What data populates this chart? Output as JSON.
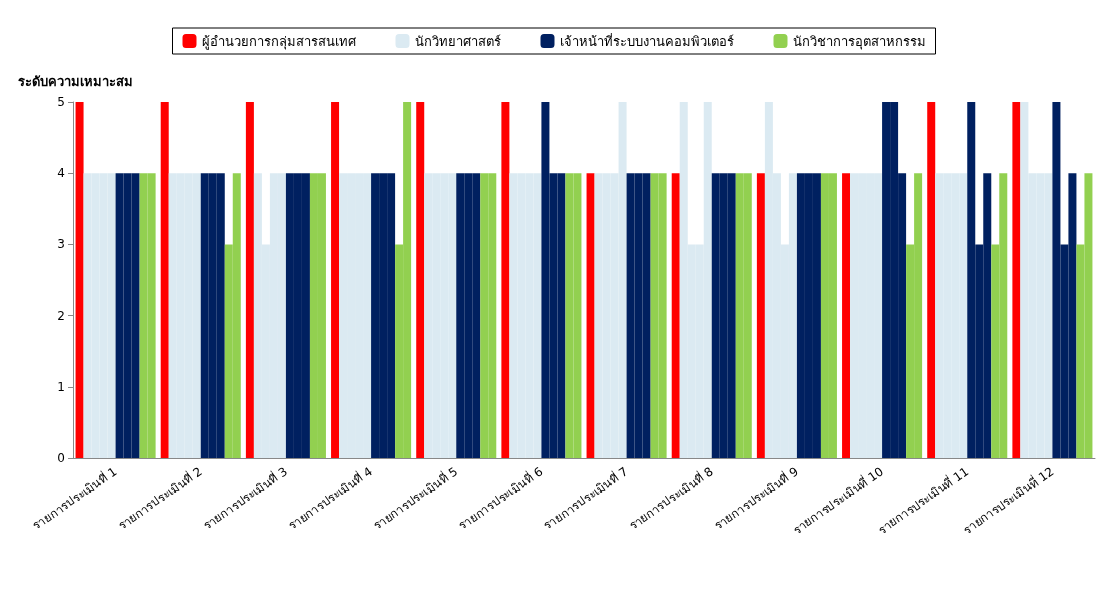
{
  "chart_data": {
    "type": "bar",
    "ylabel": "ระดับความเหมาะสม",
    "categories": [
      "รายการประเมินที่ 1",
      "รายการประเมินที่ 2",
      "รายการประเมินที่ 3",
      "รายการประเมินที่ 4",
      "รายการประเมินที่ 5",
      "รายการประเมินที่ 6",
      "รายการประเมินที่ 7",
      "รายการประเมินที่ 8",
      "รายการประเมินที่ 9",
      "รายการประเมินที่ 10",
      "รายการประเมินที่ 11",
      "รายการประเมินที่ 12"
    ],
    "series": [
      {
        "name": "ผู้อำนวยการกลุ่มสารสนเทศ",
        "color": "#ff0000",
        "values": [
          5,
          5,
          5,
          5,
          5,
          5,
          4,
          4,
          4,
          4,
          5,
          5
        ]
      },
      {
        "name": "นักวิทยาศาสตร์",
        "color": "#dbeaf2",
        "values": [
          4,
          4,
          4,
          4,
          4,
          4,
          4,
          5,
          5,
          4,
          4,
          5
        ]
      },
      {
        "color": "#dbeaf2",
        "values": [
          4,
          4,
          3,
          4,
          4,
          4,
          4,
          3,
          4,
          4,
          4,
          4
        ]
      },
      {
        "color": "#dbeaf2",
        "values": [
          4,
          4,
          4,
          4,
          4,
          4,
          4,
          3,
          3,
          4,
          4,
          4
        ]
      },
      {
        "color": "#dbeaf2",
        "values": [
          4,
          4,
          4,
          4,
          4,
          4,
          5,
          5,
          4,
          4,
          4,
          4
        ]
      },
      {
        "name": "เจ้าหน้าที่ระบบงานคอมพิวเตอร์",
        "color": "#002060",
        "values": [
          4,
          4,
          4,
          4,
          4,
          5,
          4,
          4,
          4,
          5,
          5,
          5
        ]
      },
      {
        "color": "#002060",
        "values": [
          4,
          4,
          4,
          4,
          4,
          4,
          4,
          4,
          4,
          5,
          3,
          3
        ]
      },
      {
        "color": "#002060",
        "values": [
          4,
          4,
          4,
          4,
          4,
          4,
          4,
          4,
          4,
          4,
          4,
          4
        ]
      },
      {
        "name": "นักวิชาการอุตสาหกรรม",
        "color": "#92d050",
        "values": [
          4,
          3,
          4,
          3,
          4,
          4,
          4,
          4,
          4,
          3,
          3,
          3
        ]
      },
      {
        "color": "#92d050",
        "values": [
          4,
          4,
          4,
          5,
          4,
          4,
          4,
          4,
          4,
          4,
          4,
          4
        ]
      }
    ],
    "ylim": [
      0,
      5
    ],
    "yticks": [
      0,
      1,
      2,
      3,
      4,
      5
    ],
    "grid": false,
    "legend": "top"
  }
}
